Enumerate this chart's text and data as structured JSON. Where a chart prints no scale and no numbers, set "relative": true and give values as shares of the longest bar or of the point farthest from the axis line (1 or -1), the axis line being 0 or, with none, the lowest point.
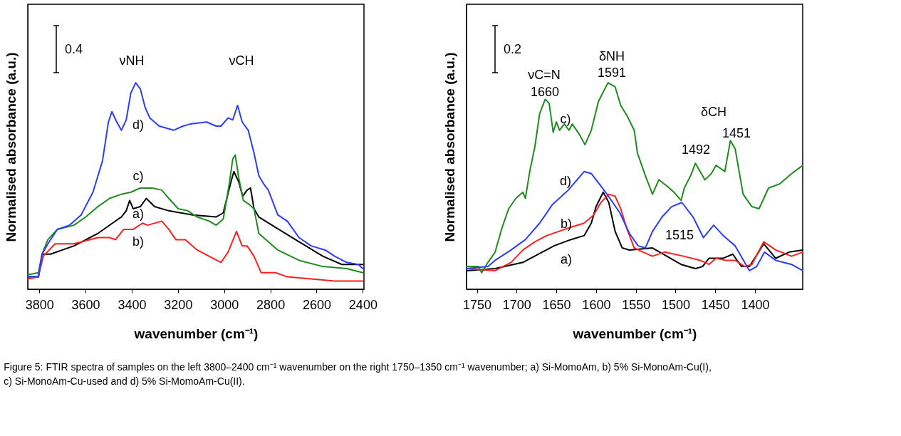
{
  "chart_data": [
    {
      "type": "line",
      "relative": true,
      "tick_labels": "x",
      "xlabel": "wavenumber (cm⁻¹)",
      "ylabel": "Normalised absorbance (a.u.)",
      "xlim": [
        3850,
        2395
      ],
      "xticks": [
        3800,
        3600,
        3400,
        3200,
        3000,
        2800,
        2600,
        2400
      ],
      "series": [
        {
          "color": "#000000",
          "x": [
            3850,
            3804,
            3788,
            3752,
            3650,
            3547,
            3445,
            3424,
            3409,
            3394,
            3363,
            3337,
            3301,
            3240,
            3137,
            3035,
            3004,
            2973,
            2958,
            2937,
            2920,
            2901,
            2886,
            2871,
            2850,
            2778,
            2676,
            2573,
            2491,
            2400
          ],
          "values": [
            0.06,
            0.06,
            0.17,
            0.17,
            0.21,
            0.27,
            0.35,
            0.38,
            0.43,
            0.39,
            0.4,
            0.44,
            0.4,
            0.38,
            0.36,
            0.35,
            0.37,
            0.51,
            0.57,
            0.52,
            0.45,
            0.48,
            0.49,
            0.39,
            0.35,
            0.3,
            0.23,
            0.16,
            0.12,
            0.12
          ]
        },
        {
          "color": "#ff2020",
          "x": [
            3850,
            3804,
            3783,
            3732,
            3650,
            3547,
            3496,
            3470,
            3435,
            3394,
            3353,
            3332,
            3270,
            3240,
            3209,
            3168,
            3117,
            3014,
            2983,
            2947,
            2922,
            2901,
            2871,
            2840,
            2778,
            2727,
            2624,
            2522,
            2400
          ],
          "values": [
            0.05,
            0.06,
            0.16,
            0.22,
            0.22,
            0.25,
            0.25,
            0.24,
            0.29,
            0.29,
            0.32,
            0.31,
            0.33,
            0.29,
            0.24,
            0.24,
            0.19,
            0.13,
            0.18,
            0.28,
            0.21,
            0.21,
            0.16,
            0.08,
            0.08,
            0.06,
            0.05,
            0.04,
            0.04
          ]
        },
        {
          "color": "#1e8c1e",
          "x": [
            3850,
            3804,
            3788,
            3763,
            3722,
            3650,
            3599,
            3547,
            3496,
            3445,
            3404,
            3363,
            3311,
            3270,
            3240,
            3199,
            3158,
            3117,
            3065,
            3035,
            3004,
            2978,
            2963,
            2952,
            2937,
            2917,
            2891,
            2871,
            2850,
            2819,
            2768,
            2676,
            2573,
            2470,
            2400
          ],
          "values": [
            0.07,
            0.08,
            0.17,
            0.24,
            0.29,
            0.31,
            0.35,
            0.4,
            0.44,
            0.46,
            0.47,
            0.49,
            0.49,
            0.48,
            0.44,
            0.39,
            0.38,
            0.35,
            0.33,
            0.31,
            0.34,
            0.51,
            0.63,
            0.65,
            0.54,
            0.43,
            0.41,
            0.39,
            0.27,
            0.24,
            0.19,
            0.14,
            0.11,
            0.1,
            0.08
          ]
        },
        {
          "color": "#2c3cff",
          "x": [
            3850,
            3804,
            3788,
            3763,
            3722,
            3670,
            3619,
            3568,
            3527,
            3501,
            3486,
            3465,
            3445,
            3424,
            3404,
            3383,
            3363,
            3342,
            3322,
            3281,
            3219,
            3178,
            3147,
            3076,
            3035,
            3014,
            2983,
            2963,
            2942,
            2922,
            2896,
            2871,
            2850,
            2829,
            2809,
            2768,
            2727,
            2676,
            2624,
            2563,
            2522,
            2470,
            2419,
            2400
          ],
          "values": [
            0.06,
            0.06,
            0.17,
            0.22,
            0.29,
            0.31,
            0.36,
            0.47,
            0.62,
            0.81,
            0.86,
            0.81,
            0.77,
            0.82,
            0.95,
            1.0,
            0.97,
            0.88,
            0.83,
            0.79,
            0.77,
            0.79,
            0.8,
            0.81,
            0.79,
            0.79,
            0.83,
            0.82,
            0.89,
            0.81,
            0.77,
            0.66,
            0.55,
            0.51,
            0.48,
            0.36,
            0.33,
            0.25,
            0.21,
            0.19,
            0.16,
            0.13,
            0.12,
            0.1
          ]
        }
      ],
      "annotations": [
        "0.4",
        "νNH",
        "νCH",
        "d)",
        "c)",
        "a)",
        "b)"
      ]
    },
    {
      "type": "line",
      "relative": true,
      "tick_labels": "x",
      "xlabel": "wavenumber (cm⁻¹)",
      "ylabel": "Normalised absorbance (a.u.)",
      "xlim": [
        1763,
        1340
      ],
      "xticks": [
        1750,
        1700,
        1650,
        1600,
        1550,
        1500,
        1450,
        1400
      ],
      "series": [
        {
          "color": "#000000",
          "x": [
            1763,
            1727,
            1692,
            1653,
            1632,
            1615,
            1606,
            1600,
            1591,
            1584,
            1576,
            1567,
            1558,
            1529,
            1511,
            1493,
            1475,
            1466,
            1458,
            1440,
            1428,
            1417,
            1407,
            1389,
            1374,
            1357,
            1340
          ],
          "values": [
            0.09,
            0.1,
            0.13,
            0.21,
            0.24,
            0.26,
            0.32,
            0.4,
            0.47,
            0.42,
            0.28,
            0.2,
            0.19,
            0.2,
            0.16,
            0.12,
            0.1,
            0.11,
            0.15,
            0.15,
            0.17,
            0.11,
            0.11,
            0.22,
            0.15,
            0.18,
            0.19
          ]
        },
        {
          "color": "#ff2020",
          "x": [
            1763,
            1727,
            1707,
            1692,
            1677,
            1662,
            1647,
            1632,
            1615,
            1603,
            1594,
            1584,
            1576,
            1569,
            1561,
            1552,
            1541,
            1529,
            1514,
            1490,
            1469,
            1458,
            1449,
            1437,
            1425,
            1413,
            1404,
            1389,
            1374,
            1354,
            1340
          ],
          "values": [
            0.1,
            0.09,
            0.13,
            0.19,
            0.23,
            0.26,
            0.28,
            0.3,
            0.32,
            0.36,
            0.42,
            0.46,
            0.45,
            0.39,
            0.29,
            0.2,
            0.18,
            0.16,
            0.18,
            0.16,
            0.14,
            0.12,
            0.15,
            0.14,
            0.14,
            0.11,
            0.12,
            0.23,
            0.19,
            0.16,
            0.18
          ]
        },
        {
          "color": "#1e8c1e",
          "x": [
            1763,
            1748,
            1744,
            1736,
            1727,
            1719,
            1710,
            1701,
            1692,
            1689,
            1683,
            1677,
            1671,
            1664,
            1659,
            1654,
            1650,
            1646,
            1640,
            1634,
            1630,
            1621,
            1614,
            1606,
            1597,
            1585,
            1576,
            1569,
            1561,
            1552,
            1548,
            1538,
            1529,
            1521,
            1511,
            1502,
            1493,
            1489,
            1481,
            1475,
            1463,
            1455,
            1449,
            1438,
            1431,
            1425,
            1415,
            1404,
            1395,
            1383,
            1369,
            1354,
            1340
          ],
          "values": [
            0.11,
            0.11,
            0.08,
            0.13,
            0.18,
            0.29,
            0.39,
            0.44,
            0.47,
            0.44,
            0.58,
            0.69,
            0.85,
            0.92,
            0.9,
            0.76,
            0.81,
            0.77,
            0.8,
            0.77,
            0.8,
            0.75,
            0.7,
            0.77,
            0.91,
            1.0,
            0.98,
            0.89,
            0.84,
            0.77,
            0.66,
            0.55,
            0.46,
            0.53,
            0.5,
            0.47,
            0.43,
            0.49,
            0.55,
            0.61,
            0.53,
            0.56,
            0.6,
            0.57,
            0.72,
            0.68,
            0.46,
            0.4,
            0.39,
            0.49,
            0.51,
            0.56,
            0.6
          ]
        },
        {
          "color": "#2c3cff",
          "x": [
            1763,
            1736,
            1727,
            1707,
            1689,
            1671,
            1655,
            1635,
            1615,
            1606,
            1588,
            1570,
            1558,
            1547,
            1538,
            1529,
            1517,
            1505,
            1492,
            1478,
            1465,
            1452,
            1440,
            1425,
            1407,
            1398,
            1388,
            1374,
            1354,
            1340
          ],
          "values": [
            0.1,
            0.11,
            0.14,
            0.19,
            0.24,
            0.32,
            0.41,
            0.48,
            0.57,
            0.56,
            0.47,
            0.37,
            0.27,
            0.21,
            0.2,
            0.28,
            0.35,
            0.4,
            0.42,
            0.35,
            0.25,
            0.31,
            0.26,
            0.21,
            0.09,
            0.11,
            0.18,
            0.14,
            0.12,
            0.09
          ]
        }
      ],
      "annotations": [
        "0.2",
        "νC=N",
        "1660",
        "δNH",
        "1591",
        "δCH",
        "1492",
        "1451",
        "1515",
        "c)",
        "d)",
        "b)",
        "a)",
        "Figure 5: FTIR spectra of samples on the left 3800–2400 cm⁻¹ wavenumber on the right 1750–1350 cm⁻¹ wavenumber; a) Si-MomoAm, b) 5% Si-MonoAm-Cu(I), c) Si-MonoAm-Cu-used and d) 5% Si-MomoAm-Cu(II)."
      ]
    }
  ]
}
